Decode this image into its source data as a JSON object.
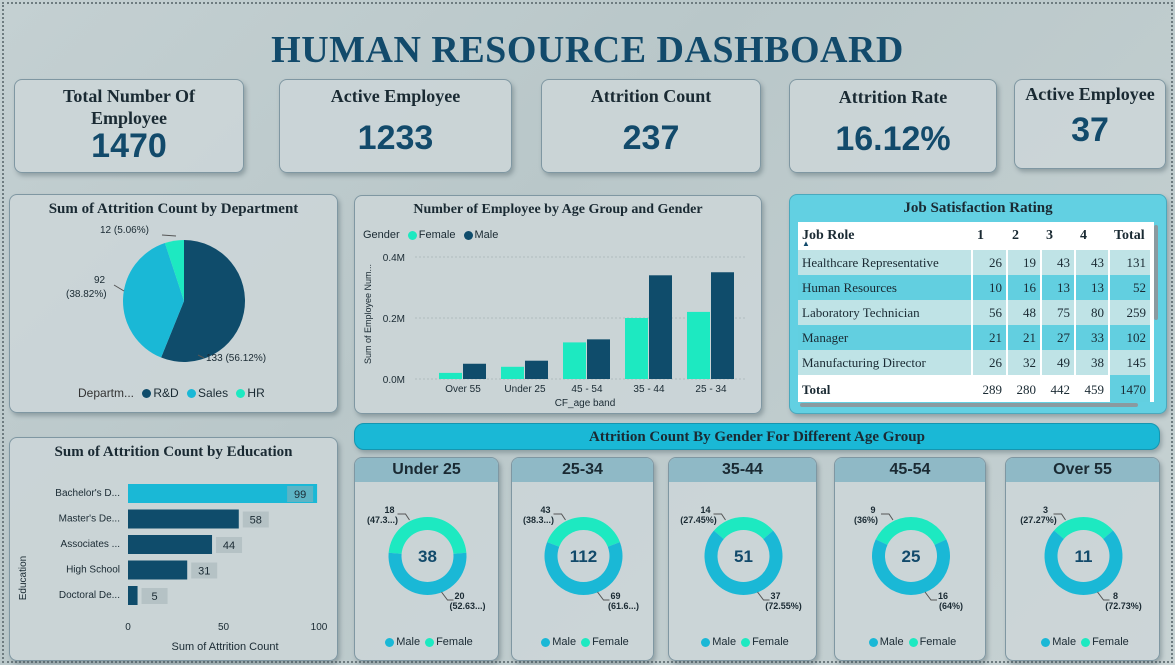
{
  "title": "HUMAN RESOURCE DASHBOARD",
  "kpis": [
    {
      "label": "Total Number Of Employee",
      "value": "1470"
    },
    {
      "label": "Active Employee",
      "value": "1233"
    },
    {
      "label": "Attrition Count",
      "value": "237"
    },
    {
      "label": "Attrition Rate",
      "value": "16.12%"
    },
    {
      "label": "Active Employee",
      "value": "37"
    }
  ],
  "dept_chart": {
    "title": "Sum of Attrition Count by Department",
    "legend_title": "Departm...",
    "slices": [
      {
        "name": "R&D",
        "value": 133,
        "label": "133 (56.12%)",
        "color": "#0f4c6b"
      },
      {
        "name": "Sales",
        "value": 92,
        "label": "92",
        "label2": "(38.82%)",
        "color": "#1ab8d6"
      },
      {
        "name": "HR",
        "value": 12,
        "label": "12 (5.06%)",
        "color": "#1de9c1"
      }
    ]
  },
  "age_gender_chart": {
    "title": "Number of Employee by Age Group and Gender",
    "legend_title": "Gender",
    "ylabel": "Sum of Employee Num...",
    "xlabel": "CF_age band",
    "yticks": [
      "0.4M",
      "0.2M",
      "0.0M"
    ],
    "series_names": [
      "Female",
      "Male"
    ],
    "colors": [
      "#1de9c1",
      "#0f4c6b"
    ]
  },
  "job_satisfaction": {
    "title": "Job Satisfaction Rating",
    "headers": [
      "Job Role",
      "1",
      "2",
      "3",
      "4",
      "Total"
    ],
    "rows": [
      [
        "Healthcare Representative",
        "26",
        "19",
        "43",
        "43",
        "131"
      ],
      [
        "Human Resources",
        "10",
        "16",
        "13",
        "13",
        "52"
      ],
      [
        "Laboratory Technician",
        "56",
        "48",
        "75",
        "80",
        "259"
      ],
      [
        "Manager",
        "21",
        "21",
        "27",
        "33",
        "102"
      ],
      [
        "Manufacturing Director",
        "26",
        "32",
        "49",
        "38",
        "145"
      ]
    ],
    "total_row": [
      "Total",
      "289",
      "280",
      "442",
      "459",
      "1470"
    ]
  },
  "education_chart": {
    "title": "Sum of Attrition Count by Education",
    "ylabel": "Education",
    "xlabel": "Sum of Attrition Count",
    "xticks": [
      "0",
      "50",
      "100"
    ]
  },
  "gender_section": {
    "title": "Attrition Count By Gender For Different Age Group",
    "legend": [
      "Male",
      "Female"
    ],
    "colors": {
      "male": "#1ab8d6",
      "female": "#1de9c1"
    },
    "groups": [
      {
        "title": "Under 25",
        "total": "38",
        "female_label": "18",
        "female_pct": "(47.3...)",
        "male_label": "20",
        "male_pct": "(52.63...)"
      },
      {
        "title": "25-34",
        "total": "112",
        "female_label": "43",
        "female_pct": "(38.3...)",
        "male_label": "69",
        "male_pct": "(61.6...)"
      },
      {
        "title": "35-44",
        "total": "51",
        "female_label": "14",
        "female_pct": "(27.45%)",
        "male_label": "37",
        "male_pct": "(72.55%)"
      },
      {
        "title": "45-54",
        "total": "25",
        "female_label": "9",
        "female_pct": "(36%)",
        "male_label": "16",
        "male_pct": "(64%)"
      },
      {
        "title": "Over 55",
        "total": "11",
        "female_label": "3",
        "female_pct": "(27.27%)",
        "male_label": "8",
        "male_pct": "(72.73%)"
      }
    ]
  },
  "chart_data": [
    {
      "type": "pie",
      "title": "Sum of Attrition Count by Department",
      "categories": [
        "R&D",
        "Sales",
        "HR"
      ],
      "values": [
        133,
        92,
        12
      ]
    },
    {
      "type": "bar",
      "title": "Number of Employee by Age Group and Gender",
      "categories": [
        "Over 55",
        "Under 25",
        "45 - 54",
        "35 - 44",
        "25 - 34"
      ],
      "series": [
        {
          "name": "Female",
          "values": [
            0.02,
            0.04,
            0.12,
            0.2,
            0.22
          ]
        },
        {
          "name": "Male",
          "values": [
            0.05,
            0.06,
            0.13,
            0.34,
            0.35
          ]
        }
      ],
      "xlabel": "CF_age band",
      "ylabel": "Sum of Employee Num...",
      "ylim": [
        0,
        0.4
      ]
    },
    {
      "type": "bar",
      "title": "Sum of Attrition Count by Education",
      "categories": [
        "Bachelor's D...",
        "Master's De...",
        "Associates ...",
        "High School",
        "Doctoral De..."
      ],
      "values": [
        99,
        58,
        44,
        31,
        5
      ],
      "xlabel": "Sum of Attrition Count",
      "ylabel": "Education",
      "xlim": [
        0,
        100
      ]
    }
  ]
}
